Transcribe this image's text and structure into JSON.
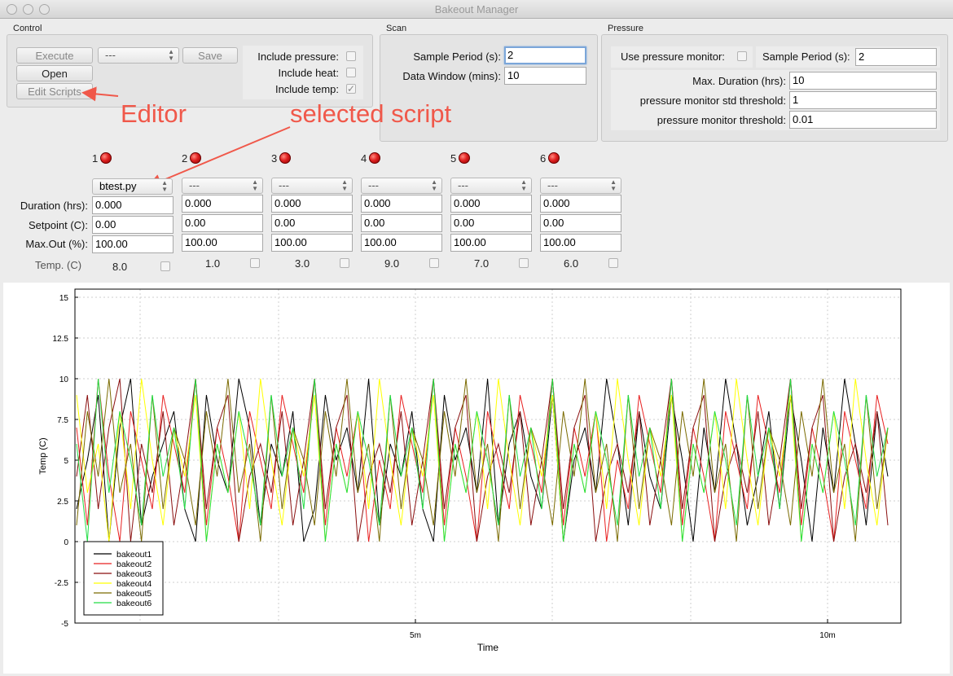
{
  "window": {
    "title": "Bakeout Manager"
  },
  "control": {
    "label": "Control",
    "execute": "Execute",
    "script_select": "---",
    "save": "Save",
    "open": "Open",
    "edit_scripts": "Edit Scripts",
    "include_pressure": "Include pressure:",
    "include_heat": "Include heat:",
    "include_temp": "Include temp:",
    "include_pressure_checked": false,
    "include_heat_checked": false,
    "include_temp_checked": true
  },
  "scan": {
    "label": "Scan",
    "sample_period_label": "Sample Period (s):",
    "sample_period": "2",
    "data_window_label": "Data Window (mins):",
    "data_window": "10"
  },
  "pressure": {
    "label": "Pressure",
    "use_monitor_label": "Use pressure monitor:",
    "sample_period_label": "Sample Period (s):",
    "sample_period": "2",
    "max_duration_label": "Max. Duration (hrs):",
    "max_duration": "10",
    "std_threshold_label": "pressure monitor std threshold:",
    "std_threshold": "1",
    "threshold_label": "pressure monitor threshold:",
    "threshold": "0.01"
  },
  "annotations": {
    "editor": "Editor",
    "selected_script": "selected script"
  },
  "controllers": {
    "row_labels": {
      "duration": "Duration (hrs):",
      "setpoint": "Setpoint (C):",
      "max_out": "Max.Out (%):",
      "temp": "Temp. (C)"
    },
    "items": [
      {
        "num": "1",
        "script": "btest.py",
        "duration": "0.000",
        "setpoint": "0.00",
        "max_out": "100.00",
        "temp": "8.0"
      },
      {
        "num": "2",
        "script": "---",
        "duration": "0.000",
        "setpoint": "0.00",
        "max_out": "100.00",
        "temp": "1.0"
      },
      {
        "num": "3",
        "script": "---",
        "duration": "0.000",
        "setpoint": "0.00",
        "max_out": "100.00",
        "temp": "3.0"
      },
      {
        "num": "4",
        "script": "---",
        "duration": "0.000",
        "setpoint": "0.00",
        "max_out": "100.00",
        "temp": "9.0"
      },
      {
        "num": "5",
        "script": "---",
        "duration": "0.000",
        "setpoint": "0.00",
        "max_out": "100.00",
        "temp": "7.0"
      },
      {
        "num": "6",
        "script": "---",
        "duration": "0.000",
        "setpoint": "0.00",
        "max_out": "100.00",
        "temp": "6.0"
      }
    ]
  },
  "chart_data": {
    "type": "line",
    "title": "",
    "xlabel": "Time",
    "ylabel": "Temp (C)",
    "ylim": [
      -5,
      15.5
    ],
    "yticks": [
      "-5",
      "-2.5",
      "0",
      "2.5",
      "5",
      "7.5",
      "10",
      "12.5",
      "15"
    ],
    "xticks": [
      "5m",
      "10m"
    ],
    "grid": true,
    "legend_position": "bottom-left",
    "series": [
      {
        "name": "bakeout1",
        "color": "#000000",
        "values": [
          2,
          5,
          9,
          0,
          7,
          10,
          1,
          4,
          6,
          8,
          2,
          0,
          9,
          5,
          3,
          10,
          7,
          1,
          6,
          4,
          8,
          0,
          2,
          9,
          5,
          7,
          3,
          10,
          1,
          6,
          4,
          8,
          2,
          0,
          9,
          5,
          7,
          3,
          10,
          1,
          6,
          8,
          4,
          2,
          9,
          0,
          5,
          7,
          3,
          10,
          6,
          1,
          8,
          4,
          2,
          9,
          5,
          0,
          7,
          3,
          10,
          6,
          1,
          4,
          8,
          2,
          9,
          5,
          0,
          7,
          3,
          10,
          6,
          1,
          8,
          4
        ]
      },
      {
        "name": "bakeout2",
        "color": "#e82020",
        "values": [
          7,
          1,
          10,
          4,
          0,
          8,
          5,
          2,
          9,
          6,
          3,
          10,
          1,
          7,
          4,
          0,
          8,
          5,
          2,
          9,
          6,
          3,
          10,
          1,
          7,
          4,
          8,
          0,
          5,
          2,
          9,
          6,
          3,
          10,
          1,
          7,
          4,
          0,
          8,
          5,
          2,
          9,
          6,
          3,
          10,
          1,
          7,
          4,
          8,
          0,
          5,
          2,
          9,
          6,
          3,
          10,
          1,
          7,
          4,
          0,
          8,
          5,
          2,
          9,
          6,
          3,
          10,
          1,
          7,
          4,
          0,
          8,
          5,
          2,
          9,
          6
        ]
      },
      {
        "name": "bakeout3",
        "color": "#8a0f0f",
        "values": [
          4,
          9,
          2,
          7,
          10,
          0,
          6,
          3,
          8,
          1,
          5,
          10,
          2,
          7,
          9,
          0,
          4,
          6,
          3,
          8,
          1,
          5,
          10,
          2,
          7,
          9,
          0,
          4,
          6,
          3,
          8,
          1,
          5,
          10,
          2,
          7,
          9,
          0,
          4,
          6,
          3,
          8,
          1,
          5,
          10,
          2,
          7,
          9,
          0,
          4,
          6,
          3,
          8,
          1,
          5,
          10,
          2,
          7,
          9,
          0,
          4,
          6,
          3,
          8,
          1,
          5,
          10,
          2,
          7,
          9,
          0,
          4,
          6,
          3,
          8,
          1
        ]
      },
      {
        "name": "bakeout4",
        "color": "#ffff00",
        "values": [
          9,
          3,
          6,
          0,
          8,
          2,
          10,
          5,
          1,
          7,
          4,
          9,
          0,
          6,
          3,
          8,
          2,
          10,
          5,
          1,
          7,
          4,
          9,
          0,
          6,
          3,
          8,
          2,
          10,
          5,
          1,
          7,
          4,
          9,
          0,
          6,
          3,
          8,
          2,
          10,
          5,
          1,
          7,
          4,
          9,
          0,
          6,
          3,
          8,
          2,
          10,
          5,
          1,
          7,
          4,
          9,
          0,
          6,
          3,
          8,
          2,
          10,
          5,
          1,
          7,
          4,
          9,
          0,
          6,
          3,
          8,
          2,
          10,
          5,
          1,
          7
        ]
      },
      {
        "name": "bakeout5",
        "color": "#7a6a00",
        "values": [
          1,
          8,
          4,
          10,
          3,
          6,
          0,
          9,
          2,
          7,
          5,
          1,
          8,
          4,
          10,
          3,
          6,
          0,
          9,
          2,
          7,
          5,
          1,
          8,
          4,
          10,
          3,
          6,
          0,
          9,
          2,
          7,
          5,
          1,
          8,
          4,
          10,
          3,
          6,
          0,
          9,
          2,
          7,
          5,
          1,
          8,
          4,
          10,
          3,
          6,
          0,
          9,
          2,
          7,
          5,
          1,
          8,
          4,
          10,
          3,
          6,
          0,
          9,
          2,
          7,
          5,
          1,
          8,
          4,
          10,
          3,
          6,
          0,
          9,
          2,
          7
        ]
      },
      {
        "name": "bakeout6",
        "color": "#22dd44",
        "values": [
          6,
          0,
          10,
          3,
          8,
          5,
          1,
          9,
          4,
          7,
          2,
          10,
          0,
          6,
          3,
          8,
          5,
          1,
          9,
          4,
          7,
          2,
          10,
          0,
          6,
          3,
          8,
          5,
          1,
          9,
          4,
          7,
          2,
          10,
          0,
          6,
          3,
          8,
          5,
          1,
          9,
          4,
          7,
          2,
          10,
          0,
          6,
          3,
          8,
          5,
          1,
          9,
          4,
          7,
          2,
          10,
          0,
          6,
          3,
          8,
          5,
          1,
          9,
          4,
          7,
          2,
          10,
          0,
          6,
          3,
          8,
          5,
          1,
          9,
          4,
          7
        ]
      }
    ]
  }
}
